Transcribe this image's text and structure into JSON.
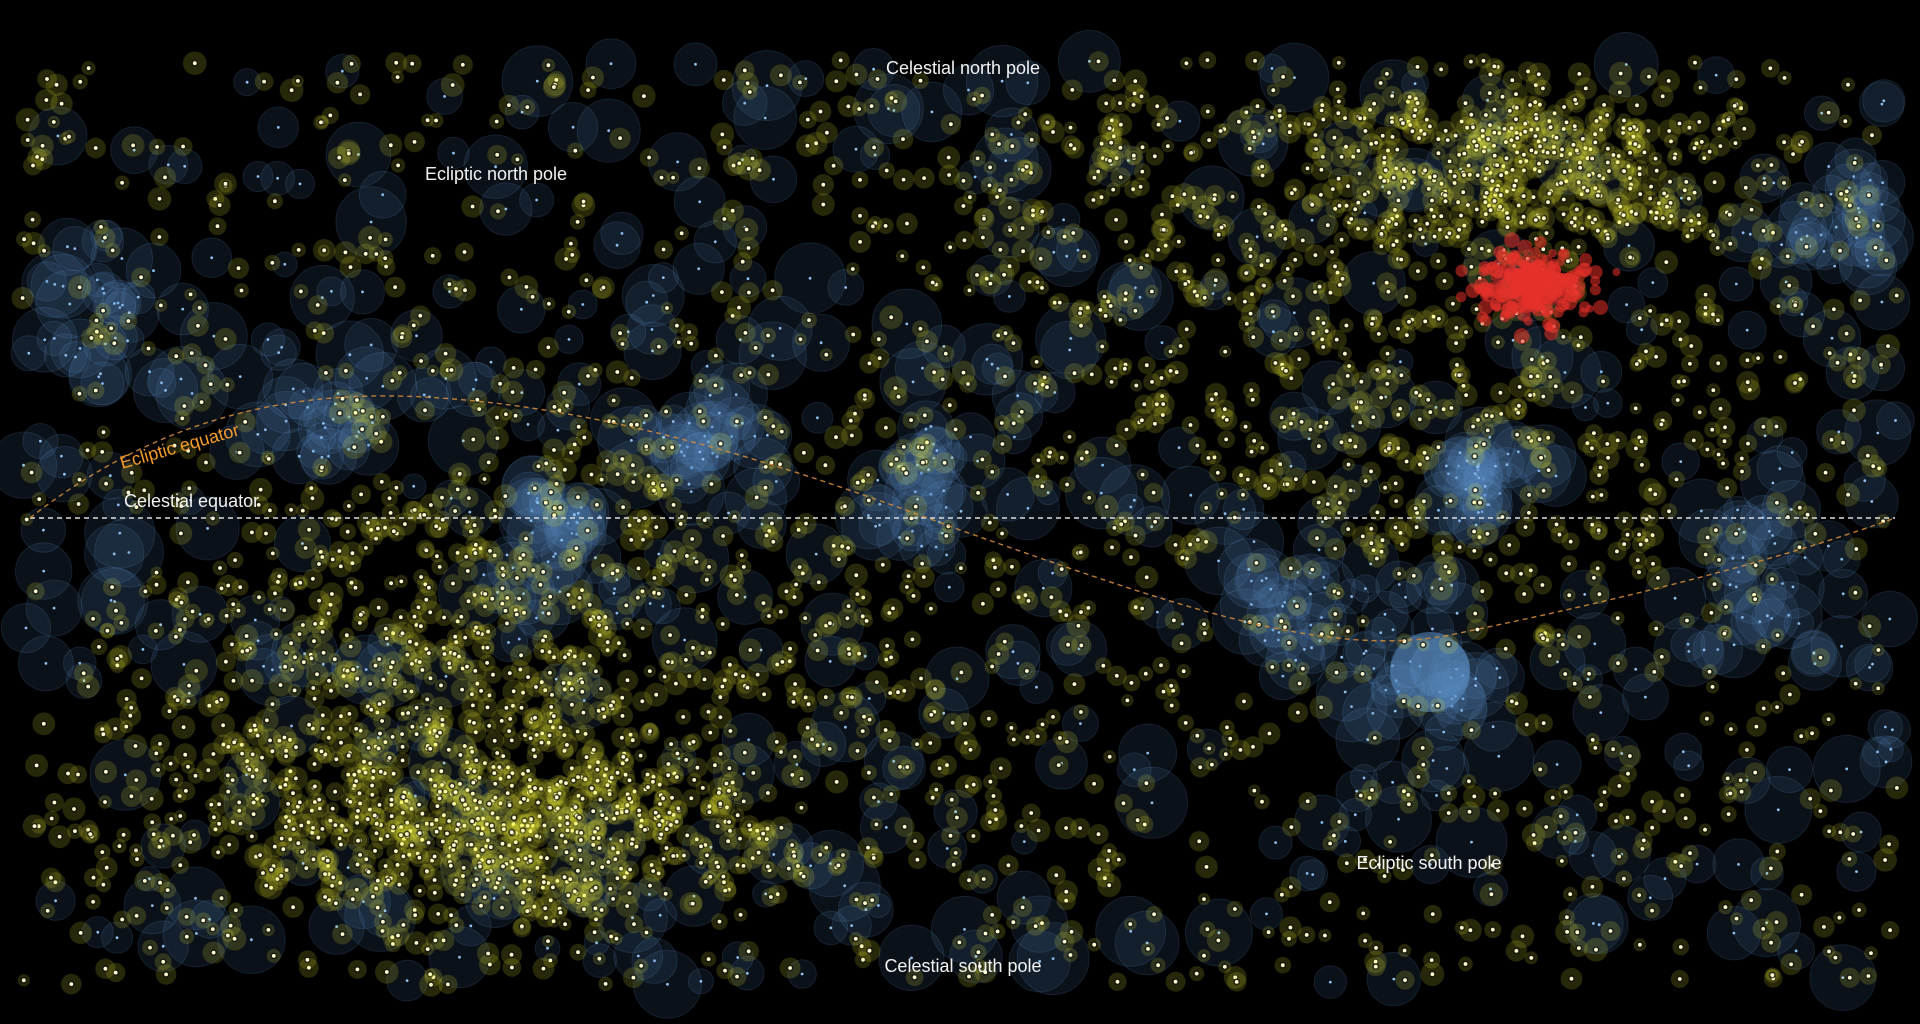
{
  "labels": {
    "celestial_north_pole": "Celestial north pole",
    "celestial_south_pole": "Celestial south pole",
    "ecliptic_north_pole": "Ecliptic north pole",
    "ecliptic_south_pole": "Ecliptic south pole",
    "ecliptic_equator": "Ecliptic equator",
    "celestial_equator": "Celestial equator"
  },
  "colors": {
    "background": "#000000",
    "yellow_object": "#f2f03a",
    "blue_object": "#5b8fc7",
    "red_object": "#e5322a",
    "ecliptic_line": "#d08a3a",
    "equator_line": "#dddddd",
    "ecliptic_label": "#f39a2b",
    "label_text": "#f2f2f2"
  }
}
